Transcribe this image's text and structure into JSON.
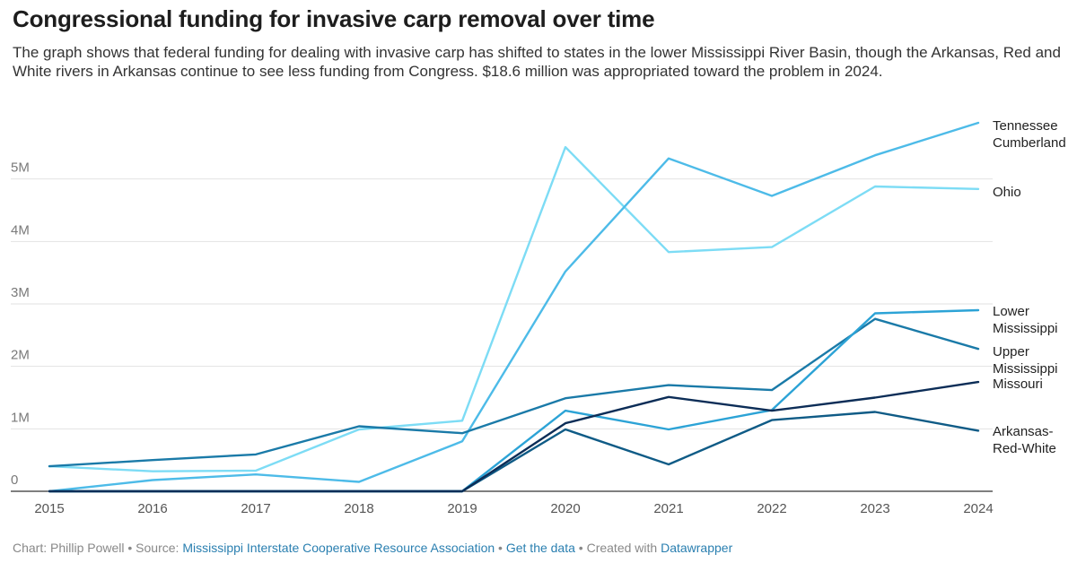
{
  "title": "Congressional funding for invasive carp removal over time",
  "subtitle": "The graph shows that federal funding for dealing with invasive carp has shifted to states in the lower Mississippi River Basin, though the Arkansas, Red and White rivers in Arkansas continue to see less funding from Congress. $18.6 million was appropriated toward the problem in 2024.",
  "footer": {
    "chart_by": "Chart: Phillip Powell",
    "sep1": " • Source: ",
    "source": "Mississippi Interstate Cooperative Resource Association",
    "sep2": " • ",
    "get_data": "Get the data",
    "sep3": " • Created with ",
    "tool": "Datawrapper"
  },
  "chart_data": {
    "type": "line",
    "x": [
      "2015",
      "2016",
      "2017",
      "2018",
      "2019",
      "2020",
      "2021",
      "2022",
      "2023",
      "2024"
    ],
    "ylim": [
      0,
      6000000
    ],
    "yticks": [
      0,
      1000000,
      2000000,
      3000000,
      4000000,
      5000000
    ],
    "ytick_labels": [
      "0",
      "1M",
      "2M",
      "3M",
      "4M",
      "5M"
    ],
    "grid": true,
    "series": [
      {
        "name": "Tennessee Cumberland",
        "name_lines": [
          "Tennessee",
          "Cumberland"
        ],
        "color": "#4dbbe8",
        "values": [
          0,
          180000,
          270000,
          150000,
          800000,
          3520000,
          5330000,
          4730000,
          5380000,
          5900000
        ]
      },
      {
        "name": "Ohio",
        "name_lines": [
          "Ohio"
        ],
        "color": "#7ddcf5",
        "values": [
          400000,
          320000,
          330000,
          990000,
          1130000,
          5510000,
          3830000,
          3910000,
          4880000,
          4840000
        ]
      },
      {
        "name": "Lower Mississippi",
        "name_lines": [
          "Lower",
          "Mississippi"
        ],
        "color": "#2ca3d6",
        "values": [
          0,
          0,
          0,
          0,
          0,
          1290000,
          990000,
          1300000,
          2850000,
          2900000
        ]
      },
      {
        "name": "Upper Mississippi",
        "name_lines": [
          "Upper",
          "Mississippi"
        ],
        "color": "#1a7aa8",
        "values": [
          400000,
          500000,
          590000,
          1040000,
          930000,
          1490000,
          1700000,
          1620000,
          2760000,
          2280000
        ]
      },
      {
        "name": "Missouri",
        "name_lines": [
          "Missouri"
        ],
        "color": "#0c2d57",
        "values": [
          0,
          0,
          0,
          0,
          0,
          1090000,
          1510000,
          1290000,
          1500000,
          1750000
        ]
      },
      {
        "name": "Arkansas-Red-White",
        "name_lines": [
          "Arkansas-",
          "Red-White"
        ],
        "color": "#0f5b86",
        "values": [
          0,
          0,
          0,
          0,
          0,
          990000,
          430000,
          1140000,
          1270000,
          970000
        ]
      }
    ]
  }
}
